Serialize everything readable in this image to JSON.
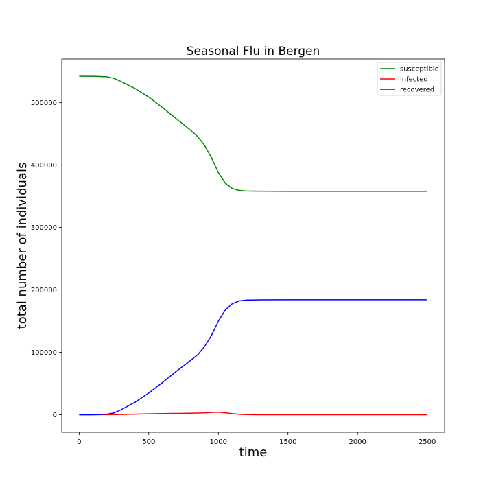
{
  "chart_data": {
    "type": "line",
    "title": "Seasonal Flu in Bergen",
    "xlabel": "time",
    "ylabel": "total number of individuals",
    "xlim": [
      -125,
      2625
    ],
    "ylim": [
      -28000,
      570000
    ],
    "xticks": [
      0,
      500,
      1000,
      1500,
      2000,
      2500
    ],
    "xtick_labels": [
      "0",
      "500",
      "1000",
      "1500",
      "2000",
      "2500"
    ],
    "yticks": [
      0,
      100000,
      200000,
      300000,
      400000,
      500000
    ],
    "ytick_labels": [
      "0",
      "100000",
      "200000",
      "300000",
      "400000",
      "500000"
    ],
    "grid": false,
    "legend_position": "top-right",
    "series": [
      {
        "name": "susceptible",
        "color": "#008000",
        "x": [
          0,
          100,
          200,
          250,
          300,
          400,
          500,
          600,
          700,
          800,
          850,
          900,
          950,
          1000,
          1050,
          1100,
          1150,
          1200,
          1300,
          1500,
          2000,
          2500
        ],
        "y": [
          542500,
          542400,
          541500,
          539000,
          534000,
          523000,
          509000,
          492000,
          474000,
          456000,
          446000,
          432000,
          412000,
          388000,
          371000,
          362500,
          359500,
          358500,
          358200,
          358000,
          358000,
          358000
        ]
      },
      {
        "name": "infected",
        "color": "#ff0000",
        "x": [
          0,
          200,
          300,
          400,
          500,
          600,
          700,
          800,
          900,
          950,
          1000,
          1050,
          1100,
          1150,
          1200,
          1300,
          1500,
          2000,
          2500
        ],
        "y": [
          0,
          200,
          500,
          1000,
          1500,
          2000,
          2300,
          2500,
          3000,
          3800,
          4200,
          3200,
          1800,
          700,
          300,
          100,
          0,
          0,
          0
        ]
      },
      {
        "name": "recovered",
        "color": "#0000ff",
        "x": [
          0,
          100,
          200,
          250,
          300,
          400,
          500,
          600,
          700,
          800,
          850,
          900,
          950,
          1000,
          1050,
          1100,
          1150,
          1200,
          1300,
          1500,
          2000,
          2500
        ],
        "y": [
          0,
          50,
          1000,
          3000,
          8000,
          20000,
          35000,
          52000,
          70000,
          87000,
          96000,
          109000,
          127000,
          150000,
          168000,
          178000,
          182500,
          183800,
          184200,
          184300,
          184300,
          184300
        ]
      }
    ]
  }
}
